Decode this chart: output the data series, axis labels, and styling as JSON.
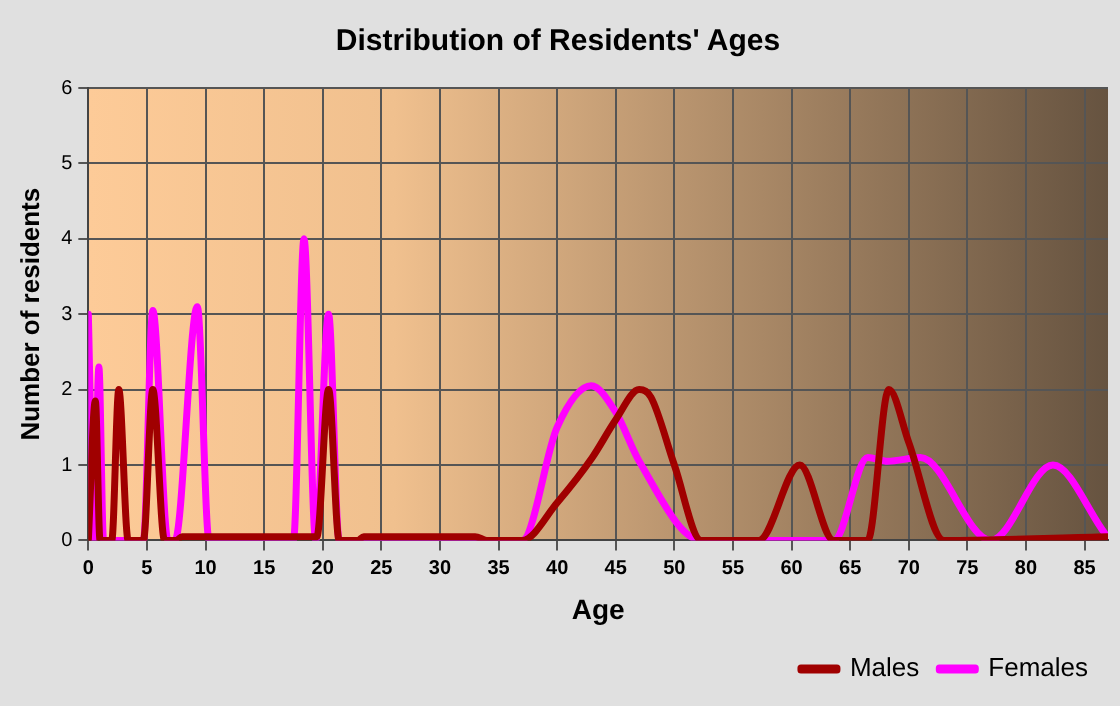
{
  "chart_data": {
    "type": "line",
    "title": "Distribution of Residents' Ages",
    "xlabel": "Age",
    "ylabel": "Number of residents",
    "xlim": [
      0,
      87
    ],
    "xticks": [
      0,
      5,
      10,
      15,
      20,
      25,
      30,
      35,
      40,
      45,
      50,
      55,
      60,
      65,
      70,
      75,
      80,
      85
    ],
    "ylim": [
      0,
      6
    ],
    "yticks": [
      0,
      1,
      2,
      3,
      4,
      5,
      6
    ],
    "grid": true,
    "legend": "bottom right",
    "marker": "none",
    "line_style": "solid",
    "series": [
      {
        "name": "Males",
        "color": "#a00000",
        "x": [
          0,
          0.6,
          1,
          2,
          2.6,
          3.4,
          4.7,
          5.5,
          6.5,
          7.5,
          8,
          19.5,
          20.5,
          21.4,
          23,
          23.5,
          33,
          34,
          37,
          40,
          43,
          45,
          47,
          48,
          50,
          52.3,
          57.2,
          60.7,
          63.6,
          66.5,
          68.3,
          70,
          73,
          87
        ],
        "values": [
          0,
          1.85,
          0,
          0,
          2,
          0,
          0,
          2,
          0,
          0,
          0.05,
          0.05,
          2,
          0,
          0,
          0.05,
          0.05,
          0,
          0,
          0.5,
          1.1,
          1.6,
          2,
          1.9,
          1,
          0,
          0,
          1,
          0,
          0,
          2,
          1.3,
          0,
          0.05
        ]
      },
      {
        "name": "Females",
        "color": "#ff00ff",
        "x": [
          0,
          0.5,
          0.9,
          1.3,
          4.7,
          5.5,
          6.8,
          7.4,
          9.3,
          10.3,
          17.5,
          18.4,
          19.4,
          20.5,
          21.4,
          37,
          40,
          42.9,
          45,
          47,
          52.3,
          63.6,
          66.5,
          68.2,
          71,
          77,
          82.3,
          86.7
        ],
        "values": [
          3,
          0,
          2.3,
          0,
          0,
          3.05,
          0,
          0,
          3.1,
          0,
          0,
          4,
          0,
          3,
          0,
          0,
          1.5,
          2.05,
          1.7,
          1.05,
          0,
          0,
          1.1,
          1.05,
          1.1,
          0,
          1,
          0.1
        ]
      }
    ]
  }
}
